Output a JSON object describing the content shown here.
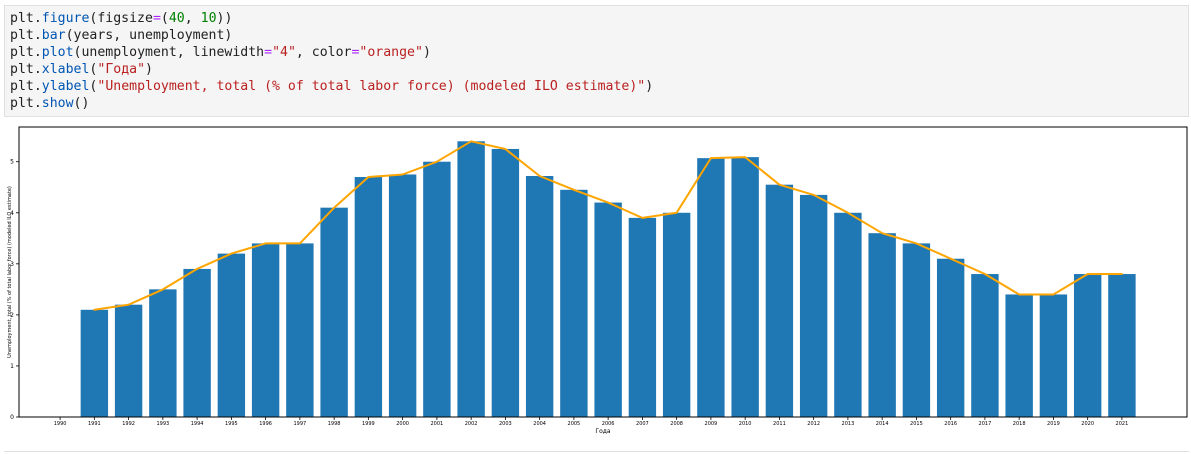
{
  "code_cell": {
    "lines": [
      [
        {
          "k": "obj",
          "t": "plt"
        },
        {
          "k": "p",
          "t": "."
        },
        {
          "k": "fn",
          "t": "figure"
        },
        {
          "k": "p",
          "t": "(figsize"
        },
        {
          "k": "op",
          "t": "="
        },
        {
          "k": "p",
          "t": "("
        },
        {
          "k": "num",
          "t": "40"
        },
        {
          "k": "p",
          "t": ", "
        },
        {
          "k": "num",
          "t": "10"
        },
        {
          "k": "p",
          "t": "))"
        }
      ],
      [
        {
          "k": "obj",
          "t": "plt"
        },
        {
          "k": "p",
          "t": "."
        },
        {
          "k": "fn",
          "t": "bar"
        },
        {
          "k": "p",
          "t": "(years, unemployment)"
        }
      ],
      [
        {
          "k": "obj",
          "t": "plt"
        },
        {
          "k": "p",
          "t": "."
        },
        {
          "k": "fn",
          "t": "plot"
        },
        {
          "k": "p",
          "t": "(unemployment, linewidth"
        },
        {
          "k": "op",
          "t": "="
        },
        {
          "k": "str",
          "t": "\"4\""
        },
        {
          "k": "p",
          "t": ", color"
        },
        {
          "k": "op",
          "t": "="
        },
        {
          "k": "str",
          "t": "\"orange\""
        },
        {
          "k": "p",
          "t": ")"
        }
      ],
      [
        {
          "k": "obj",
          "t": "plt"
        },
        {
          "k": "p",
          "t": "."
        },
        {
          "k": "fn",
          "t": "xlabel"
        },
        {
          "k": "p",
          "t": "("
        },
        {
          "k": "str",
          "t": "\"Года\""
        },
        {
          "k": "p",
          "t": ")"
        }
      ],
      [
        {
          "k": "obj",
          "t": "plt"
        },
        {
          "k": "p",
          "t": "."
        },
        {
          "k": "fn",
          "t": "ylabel"
        },
        {
          "k": "p",
          "t": "("
        },
        {
          "k": "str",
          "t": "\"Unemployment, total (% of total labor force) (modeled ILO estimate)\""
        },
        {
          "k": "p",
          "t": ")"
        }
      ],
      [
        {
          "k": "obj",
          "t": "plt"
        },
        {
          "k": "p",
          "t": "."
        },
        {
          "k": "fn",
          "t": "show"
        },
        {
          "k": "p",
          "t": "()"
        }
      ]
    ]
  },
  "chart_data": {
    "type": "bar",
    "categories": [
      "1990",
      "1991",
      "1992",
      "1993",
      "1994",
      "1995",
      "1996",
      "1997",
      "1998",
      "1999",
      "2000",
      "2001",
      "2002",
      "2003",
      "2004",
      "2005",
      "2006",
      "2007",
      "2008",
      "2009",
      "2010",
      "2011",
      "2012",
      "2013",
      "2014",
      "2015",
      "2016",
      "2017",
      "2018",
      "2019",
      "2020",
      "2021"
    ],
    "series": [
      {
        "kind": "bar",
        "color": "#1f77b4",
        "values": [
          null,
          2.1,
          2.2,
          2.5,
          2.9,
          3.2,
          3.4,
          3.4,
          4.1,
          4.7,
          4.75,
          5.0,
          5.4,
          5.25,
          4.72,
          4.45,
          4.2,
          3.9,
          4.0,
          5.07,
          5.09,
          4.55,
          4.35,
          4.0,
          3.6,
          3.4,
          3.1,
          2.8,
          2.4,
          2.4,
          2.8,
          2.8
        ]
      },
      {
        "kind": "line",
        "color": "#ffa500",
        "linewidth": 4,
        "values": [
          null,
          2.1,
          2.2,
          2.5,
          2.9,
          3.2,
          3.4,
          3.4,
          4.1,
          4.7,
          4.75,
          5.0,
          5.4,
          5.25,
          4.72,
          4.45,
          4.2,
          3.9,
          4.0,
          5.07,
          5.09,
          4.55,
          4.35,
          4.0,
          3.6,
          3.4,
          3.1,
          2.8,
          2.4,
          2.4,
          2.8,
          2.8
        ]
      }
    ],
    "xlabel": "Года",
    "ylabel": "Unemployment, total (% of total labor force) (modeled ILO estimate)",
    "ylim": [
      0,
      5.68
    ],
    "yticks": [
      0,
      1,
      2,
      3,
      4,
      5
    ],
    "grid": false
  }
}
